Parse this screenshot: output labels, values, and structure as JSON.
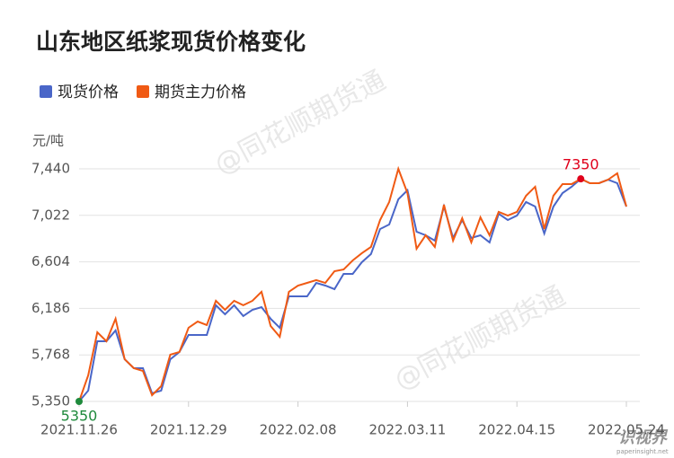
{
  "chart_data": {
    "type": "line",
    "title": "山东地区纸浆现货价格变化",
    "y_unit": "元/吨",
    "categories": [
      "2021.11.26",
      null,
      null,
      null,
      null,
      null,
      null,
      null,
      null,
      null,
      null,
      null,
      "2021.12.29",
      null,
      null,
      null,
      null,
      null,
      null,
      null,
      null,
      null,
      null,
      null,
      "2022.02.08",
      null,
      null,
      null,
      null,
      null,
      null,
      null,
      null,
      null,
      null,
      null,
      "2022.03.11",
      null,
      null,
      null,
      null,
      null,
      null,
      null,
      null,
      null,
      null,
      null,
      "2022.04.15",
      null,
      null,
      null,
      null,
      null,
      null,
      null,
      null,
      null,
      null,
      null,
      "2022.05.24"
    ],
    "series": [
      {
        "name": "现货价格",
        "color": "#4a66c8",
        "values": [
          5350,
          5447,
          5891,
          5891,
          5988,
          5729,
          5649,
          5649,
          5423,
          5447,
          5729,
          5794,
          5947,
          5947,
          5947,
          6214,
          6133,
          6214,
          6117,
          6173,
          6197,
          6093,
          6012,
          6294,
          6294,
          6294,
          6415,
          6391,
          6359,
          6496,
          6496,
          6601,
          6674,
          6899,
          6940,
          7166,
          7247,
          6875,
          6843,
          6795,
          7101,
          6819,
          6980,
          6819,
          6843,
          6779,
          7036,
          6980,
          7020,
          7142,
          7101,
          6859,
          7101,
          7222,
          7279,
          7350,
          7311,
          7311,
          7343,
          7311,
          7101
        ]
      },
      {
        "name": "期货主力价格",
        "color": "#f05a14",
        "values": [
          5350,
          5584,
          5971,
          5891,
          6093,
          5729,
          5649,
          5624,
          5406,
          5487,
          5770,
          5794,
          6012,
          6068,
          6036,
          6254,
          6173,
          6254,
          6214,
          6254,
          6335,
          6028,
          5931,
          6335,
          6391,
          6415,
          6440,
          6415,
          6520,
          6536,
          6617,
          6682,
          6738,
          6980,
          7142,
          7440,
          7222,
          6722,
          6843,
          6738,
          7117,
          6795,
          6996,
          6779,
          7004,
          6843,
          7053,
          7020,
          7053,
          7198,
          7279,
          6899,
          7198,
          7303,
          7303,
          7350,
          7311,
          7311,
          7343,
          7400,
          7101
        ]
      }
    ],
    "annotations": [
      {
        "text": "5350",
        "value": 5350,
        "color": "#1f8a3c"
      },
      {
        "text": "7350",
        "value": 7350,
        "color": "#e0001b"
      }
    ],
    "ylim": [
      5350,
      7440
    ],
    "yticks": [
      {
        "value": 5350,
        "label": "5,350"
      },
      {
        "value": 5768,
        "label": "5,768"
      },
      {
        "value": 6186,
        "label": "6,186"
      },
      {
        "value": 6604,
        "label": "6,604"
      },
      {
        "value": 7022,
        "label": "7,022"
      },
      {
        "value": 7440,
        "label": "7,440"
      }
    ],
    "grid": true,
    "watermark": "@同花顺期货通",
    "logo": {
      "text": "识视界",
      "url": "paperinsight.net"
    }
  }
}
